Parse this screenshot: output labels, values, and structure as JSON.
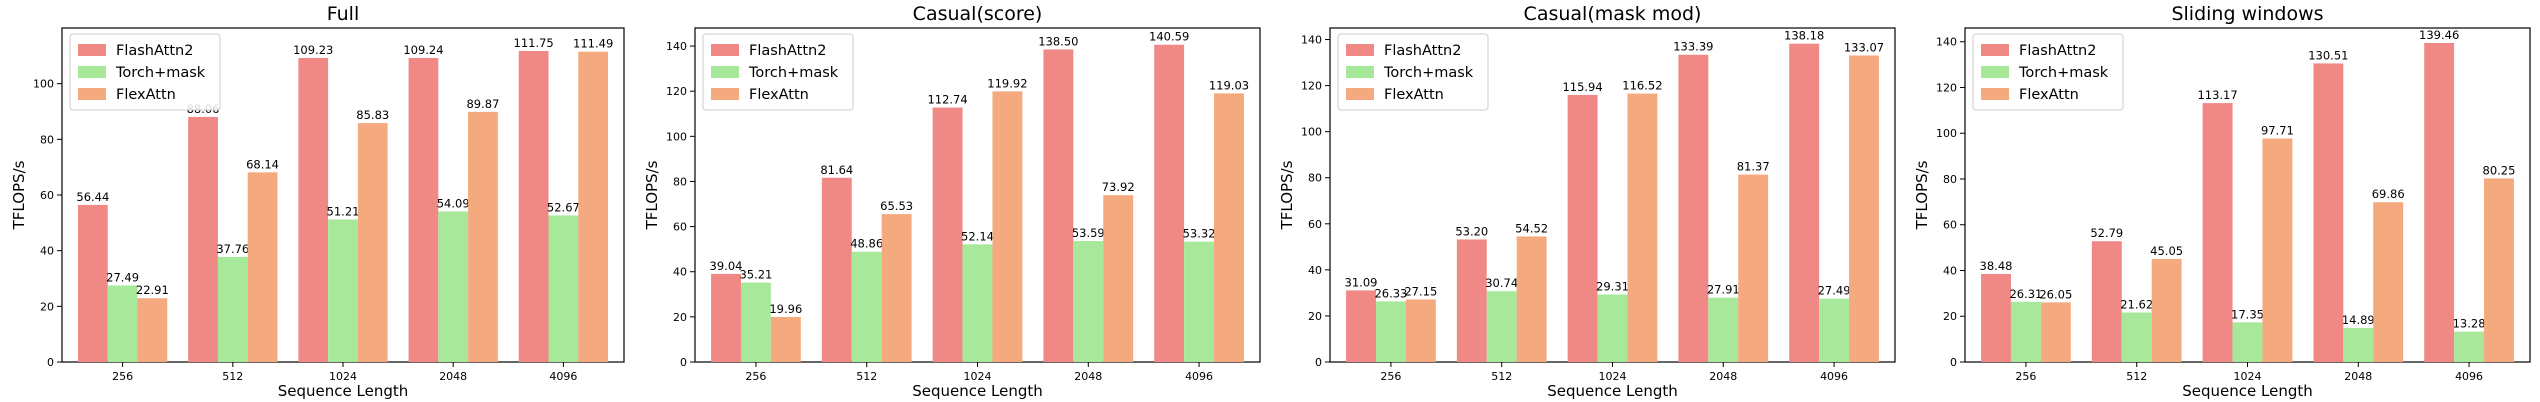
{
  "colors": {
    "FlashAttn2": "#f08986",
    "Torch+mask": "#a8e89b",
    "FlexAttn": "#f4a97e"
  },
  "chart_data": [
    {
      "type": "bar",
      "title": "Full",
      "xlabel": "Sequence Length",
      "ylabel": "TFLOPS/s",
      "categories": [
        "256",
        "512",
        "1024",
        "2048",
        "4096"
      ],
      "ylim": [
        0,
        120
      ],
      "yticks": [
        0,
        20,
        40,
        60,
        80,
        100
      ],
      "grid": false,
      "legend_position": "top-left",
      "series": [
        {
          "name": "FlashAttn2",
          "values": [
            56.44,
            88.06,
            109.23,
            109.24,
            111.75
          ],
          "labels": [
            "56.44",
            "88.06",
            "109.23",
            "109.24",
            "111.75"
          ]
        },
        {
          "name": "Torch+mask",
          "values": [
            27.49,
            37.76,
            51.21,
            54.09,
            52.67
          ],
          "labels": [
            "27.49",
            "37.76",
            "51.21",
            "54.09",
            "52.67"
          ]
        },
        {
          "name": "FlexAttn",
          "values": [
            22.91,
            68.14,
            85.83,
            89.87,
            111.49
          ],
          "labels": [
            "22.91",
            "68.14",
            "85.83",
            "89.87",
            "111.49"
          ]
        }
      ]
    },
    {
      "type": "bar",
      "title": "Casual(score)",
      "xlabel": "Sequence Length",
      "ylabel": "TFLOPS/s",
      "categories": [
        "256",
        "512",
        "1024",
        "2048",
        "4096"
      ],
      "ylim": [
        0,
        148
      ],
      "yticks": [
        0,
        20,
        40,
        60,
        80,
        100,
        120,
        140
      ],
      "grid": false,
      "legend_position": "top-left",
      "series": [
        {
          "name": "FlashAttn2",
          "values": [
            39.04,
            81.64,
            112.74,
            138.5,
            140.59
          ],
          "labels": [
            "39.04",
            "81.64",
            "112.74",
            "138.50",
            "140.59"
          ]
        },
        {
          "name": "Torch+mask",
          "values": [
            35.21,
            48.86,
            52.14,
            53.59,
            53.32
          ],
          "labels": [
            "35.21",
            "48.86",
            "52.14",
            "53.59",
            "53.32"
          ]
        },
        {
          "name": "FlexAttn",
          "values": [
            19.96,
            65.53,
            119.92,
            73.92,
            119.03
          ],
          "labels": [
            "19.96",
            "65.53",
            "119.92",
            "73.92",
            "119.03"
          ]
        }
      ]
    },
    {
      "type": "bar",
      "title": "Casual(mask mod)",
      "xlabel": "Sequence Length",
      "ylabel": "TFLOPS/s",
      "categories": [
        "256",
        "512",
        "1024",
        "2048",
        "4096"
      ],
      "ylim": [
        0,
        145
      ],
      "yticks": [
        0,
        20,
        40,
        60,
        80,
        100,
        120,
        140
      ],
      "grid": false,
      "legend_position": "top-left",
      "series": [
        {
          "name": "FlashAttn2",
          "values": [
            31.09,
            53.2,
            115.94,
            133.39,
            138.18
          ],
          "labels": [
            "31.09",
            "53.20",
            "115.94",
            "133.39",
            "138.18"
          ]
        },
        {
          "name": "Torch+mask",
          "values": [
            26.33,
            30.74,
            29.31,
            27.91,
            27.49
          ],
          "labels": [
            "26.33",
            "30.74",
            "29.31",
            "27.91",
            "27.49"
          ]
        },
        {
          "name": "FlexAttn",
          "values": [
            27.15,
            54.52,
            116.52,
            81.37,
            133.07
          ],
          "labels": [
            "27.15",
            "54.52",
            "116.52",
            "81.37",
            "133.07"
          ]
        }
      ]
    },
    {
      "type": "bar",
      "title": "Sliding windows",
      "xlabel": "Sequence Length",
      "ylabel": "TFLOPS/s",
      "categories": [
        "256",
        "512",
        "1024",
        "2048",
        "4096"
      ],
      "ylim": [
        0,
        146
      ],
      "yticks": [
        0,
        20,
        40,
        60,
        80,
        100,
        120,
        140
      ],
      "grid": false,
      "legend_position": "top-left",
      "series": [
        {
          "name": "FlashAttn2",
          "values": [
            38.48,
            52.79,
            113.17,
            130.51,
            139.46
          ],
          "labels": [
            "38.48",
            "52.79",
            "113.17",
            "130.51",
            "139.46"
          ]
        },
        {
          "name": "Torch+mask",
          "values": [
            26.31,
            21.62,
            17.35,
            14.89,
            13.28
          ],
          "labels": [
            "26.31",
            "21.62",
            "17.35",
            "14.89",
            "13.28"
          ]
        },
        {
          "name": "FlexAttn",
          "values": [
            26.05,
            45.05,
            97.71,
            69.86,
            80.25
          ],
          "labels": [
            "26.05",
            "45.05",
            "97.71",
            "69.86",
            "80.25"
          ]
        }
      ]
    }
  ]
}
